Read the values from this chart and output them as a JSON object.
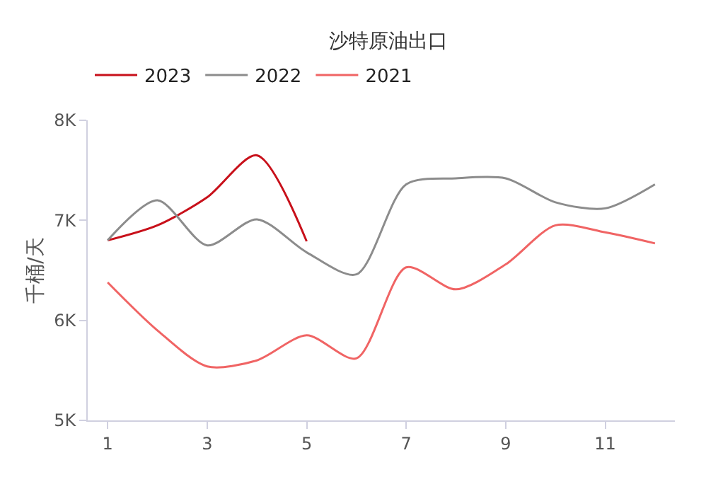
{
  "chart_data": {
    "type": "line",
    "title": "沙特原油出口",
    "ylabel": "千桶/天",
    "x": [
      1,
      2,
      3,
      4,
      5,
      6,
      7,
      8,
      9,
      10,
      11,
      12
    ],
    "series": [
      {
        "name": "2023",
        "color": "#c8101a",
        "values": [
          6.8,
          6.95,
          7.23,
          7.65,
          6.79,
          null,
          null,
          null,
          null,
          null,
          null,
          null
        ]
      },
      {
        "name": "2022",
        "color": "#8c8c8c",
        "values": [
          6.8,
          7.2,
          6.75,
          7.01,
          6.68,
          6.46,
          7.36,
          7.42,
          7.42,
          7.18,
          7.12,
          7.36
        ]
      },
      {
        "name": "2021",
        "color": "#f06464",
        "values": [
          6.38,
          5.9,
          5.54,
          5.6,
          5.85,
          5.62,
          6.53,
          6.31,
          6.56,
          6.95,
          6.88,
          6.77
        ]
      }
    ],
    "xlim": [
      0.6,
      12.4
    ],
    "xticks": [
      1,
      3,
      5,
      7,
      9,
      11
    ],
    "ylim": [
      5,
      8
    ],
    "yticks": [
      {
        "value": 5,
        "label": "5K"
      },
      {
        "value": 6,
        "label": "6K"
      },
      {
        "value": 7,
        "label": "7K"
      },
      {
        "value": 8,
        "label": "8K"
      }
    ],
    "legend": "top left",
    "marker": "none",
    "line_style": "solid"
  }
}
